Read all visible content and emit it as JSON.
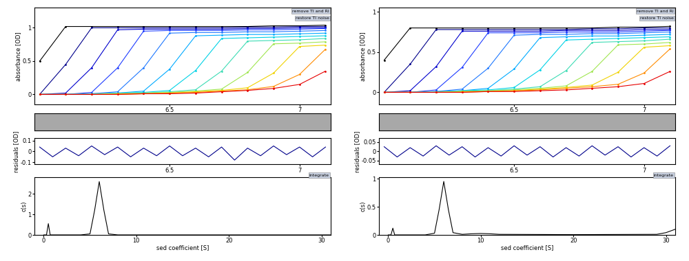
{
  "chart_data": [
    {
      "type": "line",
      "ylabel": "absorbance [OD]",
      "annotations": [
        "remove TI and RI",
        "restore TI noise"
      ],
      "x": [
        6.0,
        6.1,
        6.2,
        6.3,
        6.4,
        6.5,
        6.6,
        6.7,
        6.8,
        6.9,
        7.0,
        7.1
      ],
      "marker": "point",
      "line_style": "solid",
      "series": [
        {
          "color": "#000000",
          "values": [
            0.5,
            1.02,
            1.02,
            1.02,
            1.02,
            1.02,
            1.02,
            1.02,
            1.02,
            1.03,
            1.03,
            1.04
          ]
        },
        {
          "color": "#00008b",
          "values": [
            0.0,
            0.45,
            1.0,
            1.0,
            1.0,
            1.0,
            1.0,
            1.0,
            1.01,
            1.01,
            1.02,
            1.02
          ]
        },
        {
          "color": "#0000cd",
          "values": [
            0.0,
            0.02,
            0.4,
            0.97,
            0.98,
            0.98,
            0.98,
            0.98,
            0.99,
            0.99,
            1.0,
            1.0
          ]
        },
        {
          "color": "#1e3cff",
          "values": [
            0.0,
            0.0,
            0.03,
            0.4,
            0.95,
            0.96,
            0.96,
            0.96,
            0.97,
            0.97,
            0.98,
            0.99
          ]
        },
        {
          "color": "#1e78ff",
          "values": [
            0.0,
            0.0,
            0.01,
            0.04,
            0.4,
            0.92,
            0.93,
            0.93,
            0.94,
            0.94,
            0.95,
            0.96
          ]
        },
        {
          "color": "#00aaff",
          "values": [
            0.0,
            0.0,
            0.01,
            0.02,
            0.05,
            0.38,
            0.88,
            0.89,
            0.9,
            0.9,
            0.91,
            0.92
          ]
        },
        {
          "color": "#00d2e6",
          "values": [
            0.0,
            0.0,
            0.0,
            0.02,
            0.03,
            0.06,
            0.36,
            0.84,
            0.85,
            0.86,
            0.87,
            0.88
          ]
        },
        {
          "color": "#3cdcb4",
          "values": [
            0.0,
            0.0,
            0.0,
            0.01,
            0.02,
            0.04,
            0.07,
            0.35,
            0.8,
            0.81,
            0.82,
            0.84
          ]
        },
        {
          "color": "#a0e650",
          "values": [
            0.0,
            0.0,
            0.0,
            0.01,
            0.02,
            0.03,
            0.05,
            0.08,
            0.33,
            0.76,
            0.77,
            0.79
          ]
        },
        {
          "color": "#f0d200",
          "values": [
            0.0,
            0.0,
            0.0,
            0.01,
            0.01,
            0.02,
            0.04,
            0.06,
            0.1,
            0.32,
            0.72,
            0.74
          ]
        },
        {
          "color": "#ff8c00",
          "values": [
            0.0,
            0.0,
            0.0,
            0.0,
            0.01,
            0.02,
            0.03,
            0.05,
            0.07,
            0.12,
            0.3,
            0.68
          ]
        },
        {
          "color": "#e60000",
          "values": [
            0.0,
            0.0,
            0.0,
            0.0,
            0.01,
            0.01,
            0.02,
            0.04,
            0.06,
            0.09,
            0.15,
            0.35
          ]
        }
      ],
      "xlim": [
        5.98,
        7.12
      ],
      "xticks": [
        6.5,
        7
      ],
      "ylim": [
        -0.15,
        1.3
      ],
      "yticks": [
        0,
        0.5,
        1
      ]
    },
    {
      "type": "line",
      "ylabel": "residuals [OD]",
      "x": [
        6.0,
        6.05,
        6.1,
        6.15,
        6.2,
        6.25,
        6.3,
        6.35,
        6.4,
        6.45,
        6.5,
        6.55,
        6.6,
        6.65,
        6.7,
        6.75,
        6.8,
        6.85,
        6.9,
        6.95,
        7.0,
        7.05,
        7.1
      ],
      "values": [
        0.04,
        -0.05,
        0.03,
        -0.04,
        0.05,
        -0.03,
        0.04,
        -0.05,
        0.03,
        -0.04,
        0.05,
        -0.04,
        0.03,
        -0.05,
        0.04,
        -0.08,
        0.03,
        -0.04,
        0.05,
        -0.03,
        0.04,
        -0.05,
        0.04
      ],
      "color": "#00008b",
      "xlim": [
        5.98,
        7.12
      ],
      "xticks": [
        6.5,
        7
      ],
      "ylim": [
        -0.12,
        0.12
      ],
      "yticks": [
        -0.1,
        0,
        0.1
      ]
    },
    {
      "type": "line",
      "xlabel": "sed coefficient [S]",
      "ylabel": "c(s)",
      "annotations": [
        "integrate"
      ],
      "x": [
        0,
        0.3,
        0.5,
        0.7,
        1,
        4,
        5,
        5.5,
        6,
        6.5,
        7,
        8,
        10,
        20,
        31
      ],
      "values": [
        0,
        0,
        0.55,
        0,
        0,
        0,
        0.05,
        1.2,
        2.6,
        1.2,
        0.05,
        0,
        0,
        0,
        0
      ],
      "color": "#000000",
      "xlim": [
        -1,
        31
      ],
      "xticks": [
        0,
        10,
        20,
        30
      ],
      "ylim": [
        0,
        2.8
      ],
      "yticks": [
        0,
        1,
        2
      ]
    },
    {
      "type": "line",
      "ylabel": "absorbance [OD]",
      "annotations": [
        "remove TI and RI",
        "restore TI noise"
      ],
      "x": [
        6.0,
        6.1,
        6.2,
        6.3,
        6.4,
        6.5,
        6.6,
        6.7,
        6.8,
        6.9,
        7.0,
        7.1
      ],
      "marker": "point",
      "line_style": "solid",
      "series": [
        {
          "color": "#000000",
          "values": [
            0.4,
            0.8,
            0.8,
            0.8,
            0.8,
            0.8,
            0.8,
            0.8,
            0.8,
            0.81,
            0.81,
            0.82
          ]
        },
        {
          "color": "#00008b",
          "values": [
            0.0,
            0.35,
            0.78,
            0.78,
            0.78,
            0.78,
            0.78,
            0.78,
            0.79,
            0.79,
            0.8,
            0.8
          ]
        },
        {
          "color": "#0000cd",
          "values": [
            0.0,
            0.02,
            0.32,
            0.76,
            0.76,
            0.76,
            0.76,
            0.77,
            0.77,
            0.77,
            0.78,
            0.78
          ]
        },
        {
          "color": "#1e3cff",
          "values": [
            0.0,
            0.0,
            0.03,
            0.31,
            0.74,
            0.74,
            0.74,
            0.75,
            0.75,
            0.75,
            0.76,
            0.77
          ]
        },
        {
          "color": "#1e78ff",
          "values": [
            0.0,
            0.0,
            0.01,
            0.04,
            0.3,
            0.71,
            0.72,
            0.72,
            0.73,
            0.73,
            0.74,
            0.75
          ]
        },
        {
          "color": "#00aaff",
          "values": [
            0.0,
            0.0,
            0.01,
            0.02,
            0.05,
            0.29,
            0.68,
            0.69,
            0.7,
            0.7,
            0.71,
            0.72
          ]
        },
        {
          "color": "#00d2e6",
          "values": [
            0.0,
            0.0,
            0.0,
            0.02,
            0.03,
            0.06,
            0.28,
            0.65,
            0.66,
            0.67,
            0.68,
            0.69
          ]
        },
        {
          "color": "#3cdcb4",
          "values": [
            0.0,
            0.0,
            0.0,
            0.01,
            0.02,
            0.04,
            0.07,
            0.27,
            0.62,
            0.63,
            0.64,
            0.66
          ]
        },
        {
          "color": "#a0e650",
          "values": [
            0.0,
            0.0,
            0.0,
            0.01,
            0.02,
            0.03,
            0.05,
            0.08,
            0.26,
            0.59,
            0.6,
            0.62
          ]
        },
        {
          "color": "#f0d200",
          "values": [
            0.0,
            0.0,
            0.0,
            0.01,
            0.01,
            0.02,
            0.04,
            0.06,
            0.09,
            0.25,
            0.56,
            0.58
          ]
        },
        {
          "color": "#ff8c00",
          "values": [
            0.0,
            0.0,
            0.0,
            0.0,
            0.01,
            0.02,
            0.03,
            0.05,
            0.07,
            0.1,
            0.24,
            0.54
          ]
        },
        {
          "color": "#e60000",
          "values": [
            0.0,
            0.0,
            0.0,
            0.0,
            0.01,
            0.01,
            0.02,
            0.03,
            0.05,
            0.07,
            0.11,
            0.26
          ]
        }
      ],
      "xlim": [
        5.98,
        7.12
      ],
      "xticks": [
        6.5,
        7
      ],
      "ylim": [
        -0.15,
        1.05
      ],
      "yticks": [
        0,
        0.5,
        1
      ]
    },
    {
      "type": "line",
      "ylabel": "residuals [OD]",
      "x": [
        6.0,
        6.05,
        6.1,
        6.15,
        6.2,
        6.25,
        6.3,
        6.35,
        6.4,
        6.45,
        6.5,
        6.55,
        6.6,
        6.65,
        6.7,
        6.75,
        6.8,
        6.85,
        6.9,
        6.95,
        7.0,
        7.05,
        7.1
      ],
      "values": [
        0.025,
        -0.03,
        0.02,
        -0.025,
        0.03,
        -0.02,
        0.025,
        -0.03,
        0.02,
        -0.025,
        0.03,
        -0.02,
        0.025,
        -0.03,
        0.02,
        -0.025,
        0.03,
        -0.02,
        0.025,
        -0.03,
        0.02,
        -0.025,
        0.03
      ],
      "color": "#00008b",
      "xlim": [
        5.98,
        7.12
      ],
      "xticks": [
        6.5,
        7
      ],
      "ylim": [
        -0.07,
        0.07
      ],
      "yticks": [
        -0.05,
        0,
        0.05
      ]
    },
    {
      "type": "line",
      "xlabel": "sed coefficient [S]",
      "ylabel": "c(s)",
      "annotations": [
        "integrate"
      ],
      "x": [
        0,
        0.3,
        0.5,
        0.7,
        1,
        4,
        5,
        5.5,
        6,
        6.5,
        7,
        8,
        9,
        10,
        11,
        12,
        20,
        29,
        30,
        31
      ],
      "values": [
        0,
        0,
        0.12,
        0,
        0,
        0,
        0.03,
        0.45,
        0.95,
        0.45,
        0.04,
        0.01,
        0.02,
        0.025,
        0.02,
        0.01,
        0.005,
        0.01,
        0.04,
        0.1
      ],
      "color": "#000000",
      "xlim": [
        -1,
        31
      ],
      "xticks": [
        0,
        10,
        20,
        30
      ],
      "ylim": [
        0,
        1.02
      ],
      "yticks": [
        0,
        0.5,
        1
      ]
    }
  ]
}
